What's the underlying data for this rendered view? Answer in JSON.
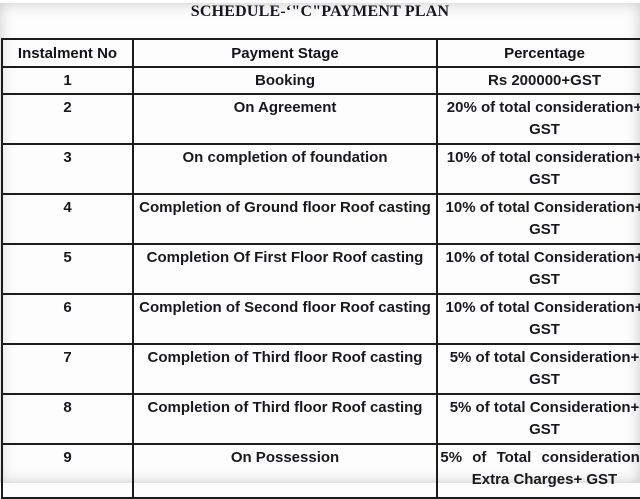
{
  "title": "SCHEDULE-‘\"C\"PAYMENT PLAN",
  "table": {
    "headers": [
      "Instalment No",
      "Payment Stage",
      "Percentage"
    ],
    "rows": [
      {
        "no": "1",
        "stage": "Booking",
        "percentage": [
          "Rs 200000+GST"
        ]
      },
      {
        "no": "2",
        "stage": "On Agreement",
        "percentage": [
          "20% of total consideration+",
          "GST"
        ]
      },
      {
        "no": "3",
        "stage": "On completion of foundation",
        "percentage": [
          "10% of total consideration+",
          "GST"
        ]
      },
      {
        "no": "4",
        "stage": "Completion of Ground floor Roof casting",
        "percentage": [
          "10% of total Consideration+",
          "GST"
        ]
      },
      {
        "no": "5",
        "stage": "Completion Of First Floor Roof casting",
        "percentage": [
          "10% of total Consideration+",
          "GST"
        ]
      },
      {
        "no": "6",
        "stage": "Completion of Second floor Roof casting",
        "percentage": [
          "10% of total Consideration+",
          "GST"
        ]
      },
      {
        "no": "7",
        "stage": "Completion of Third floor Roof casting",
        "percentage": [
          "5% of total Consideration+",
          "GST"
        ]
      },
      {
        "no": "8",
        "stage": "Completion of Third floor Roof casting",
        "percentage": [
          "5% of total Consideration+",
          "GST"
        ]
      },
      {
        "no": "9",
        "stage": "On Possession",
        "percentage": [
          "5% of Total consideration+",
          "Extra Charges+ GST"
        ],
        "justify_first_line": true
      }
    ]
  },
  "colors": {
    "text": "#18181f",
    "border": "#1c1c1c",
    "background": "#fdfdfd"
  }
}
